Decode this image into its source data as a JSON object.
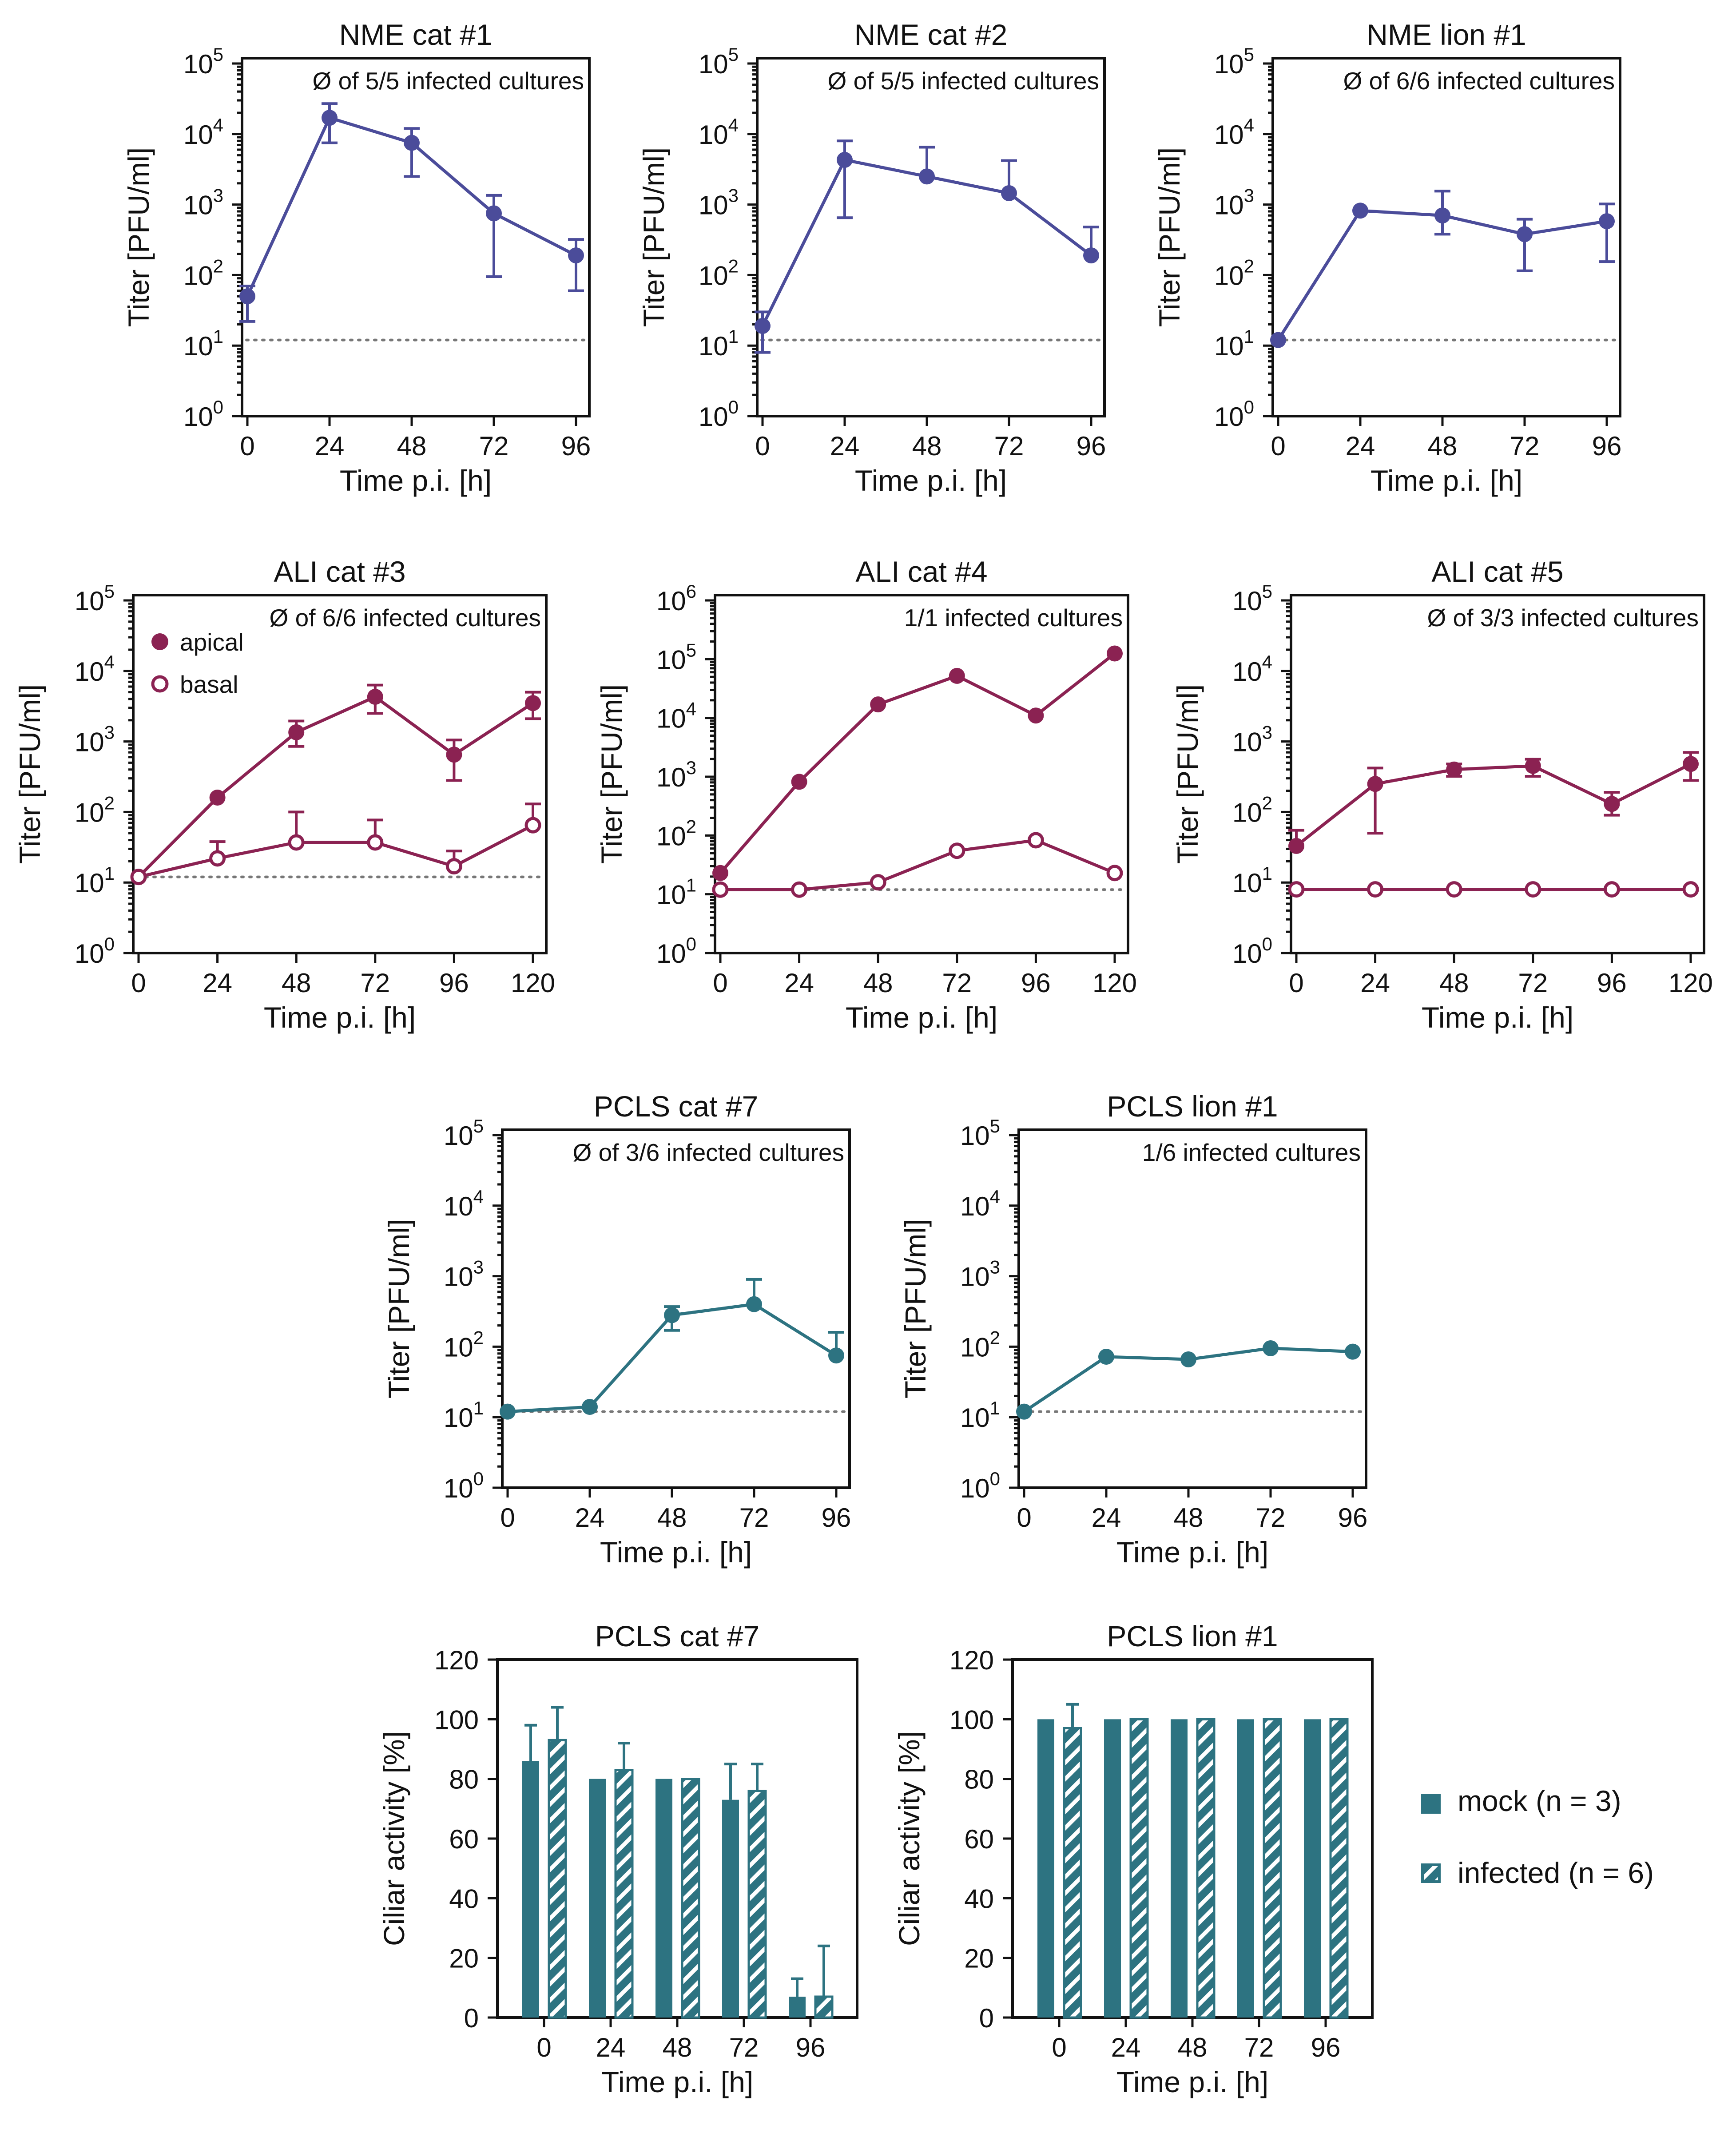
{
  "colors": {
    "nme": "#4b4c9a",
    "ali": "#8b2252",
    "pcls": "#2d7381"
  },
  "legends": {
    "apical": "apical",
    "basal": "basal",
    "mock": "mock (n = 3)",
    "infected": "infected (n = 6)"
  },
  "chart_data": [
    {
      "id": "nme-cat1",
      "type": "line",
      "title": "NME cat #1",
      "annotation": "Ø of 5/5 infected cultures",
      "xlabel": "Time p.i. [h]",
      "ylabel": "Titer [PFU/ml]",
      "xlim": [
        0,
        96
      ],
      "xticks": [
        0,
        24,
        48,
        72,
        96
      ],
      "ylog_exp": [
        0,
        5
      ],
      "yscale": "log",
      "detection_limit": 12,
      "color": "nme",
      "series": [
        {
          "name": "titer",
          "marker": "filled",
          "x": [
            0,
            24,
            48,
            72,
            96
          ],
          "y": [
            50,
            17000,
            7500,
            750,
            190
          ],
          "err_low": [
            22,
            7500,
            2500,
            95,
            60
          ],
          "err_high": [
            70,
            27000,
            12000,
            1350,
            320
          ]
        }
      ]
    },
    {
      "id": "nme-cat2",
      "type": "line",
      "title": "NME cat #2",
      "annotation": "Ø of 5/5 infected cultures",
      "xlabel": "Time p.i. [h]",
      "ylabel": "Titer [PFU/ml]",
      "xlim": [
        0,
        96
      ],
      "xticks": [
        0,
        24,
        48,
        72,
        96
      ],
      "ylog_exp": [
        0,
        5
      ],
      "yscale": "log",
      "detection_limit": 12,
      "color": "nme",
      "series": [
        {
          "name": "titer",
          "marker": "filled",
          "x": [
            0,
            24,
            48,
            72,
            96
          ],
          "y": [
            19,
            4300,
            2500,
            1450,
            190
          ],
          "err_low": [
            8,
            650,
            null,
            null,
            null
          ],
          "err_high": [
            30,
            8000,
            6500,
            4200,
            480
          ]
        }
      ]
    },
    {
      "id": "nme-lion1",
      "type": "line",
      "title": "NME lion #1",
      "annotation": "Ø of 6/6 infected cultures",
      "xlabel": "Time p.i. [h]",
      "ylabel": "Titer [PFU/ml]",
      "xlim": [
        0,
        96
      ],
      "xticks": [
        0,
        24,
        48,
        72,
        96
      ],
      "ylog_exp": [
        0,
        5
      ],
      "yscale": "log",
      "detection_limit": 12,
      "color": "nme",
      "series": [
        {
          "name": "titer",
          "marker": "filled",
          "x": [
            0,
            24,
            48,
            72,
            96
          ],
          "y": [
            12,
            820,
            700,
            380,
            580
          ],
          "err_low": [
            null,
            null,
            380,
            115,
            155
          ],
          "err_high": [
            null,
            null,
            1550,
            620,
            1020
          ]
        }
      ]
    },
    {
      "id": "ali-cat3",
      "type": "line",
      "title": "ALI cat #3",
      "annotation": "Ø of 6/6 infected cultures",
      "xlabel": "Time p.i. [h]",
      "ylabel": "Titer [PFU/ml]",
      "xlim": [
        0,
        120
      ],
      "xticks": [
        0,
        24,
        48,
        72,
        96,
        120
      ],
      "ylog_exp": [
        0,
        5
      ],
      "yscale": "log",
      "detection_limit": 12,
      "color": "ali",
      "legend": [
        "apical",
        "basal"
      ],
      "series": [
        {
          "name": "apical",
          "marker": "filled",
          "x": [
            0,
            24,
            48,
            72,
            96,
            120
          ],
          "y": [
            12,
            160,
            1350,
            4300,
            650,
            3500
          ],
          "err_low": [
            null,
            null,
            850,
            2500,
            280,
            2100
          ],
          "err_high": [
            null,
            null,
            1950,
            6300,
            1050,
            5000
          ]
        },
        {
          "name": "basal",
          "marker": "open",
          "x": [
            0,
            24,
            48,
            72,
            96,
            120
          ],
          "y": [
            12,
            22,
            37,
            37,
            17,
            65
          ],
          "err_low": [
            null,
            null,
            null,
            null,
            null,
            null
          ],
          "err_high": [
            null,
            38,
            100,
            77,
            28,
            130
          ]
        }
      ]
    },
    {
      "id": "ali-cat4",
      "type": "line",
      "title": "ALI cat #4",
      "annotation": "1/1 infected cultures",
      "xlabel": "Time p.i. [h]",
      "ylabel": "Titer [PFU/ml]",
      "xlim": [
        0,
        120
      ],
      "xticks": [
        0,
        24,
        48,
        72,
        96,
        120
      ],
      "ylog_exp": [
        0,
        6
      ],
      "yscale": "log",
      "detection_limit": 12,
      "color": "ali",
      "series": [
        {
          "name": "apical",
          "marker": "filled",
          "x": [
            0,
            24,
            48,
            72,
            96,
            120
          ],
          "y": [
            23,
            820,
            17000,
            52000,
            11000,
            125000
          ]
        },
        {
          "name": "basal",
          "marker": "open",
          "x": [
            0,
            24,
            48,
            72,
            96,
            120
          ],
          "y": [
            12,
            12,
            16,
            55,
            83,
            23
          ]
        }
      ]
    },
    {
      "id": "ali-cat5",
      "type": "line",
      "title": "ALI cat #5",
      "annotation": "Ø of 3/3  infected cultures",
      "xlabel": "Time p.i. [h]",
      "ylabel": "Titer [PFU/ml]",
      "xlim": [
        0,
        120
      ],
      "xticks": [
        0,
        24,
        48,
        72,
        96,
        120
      ],
      "ylog_exp": [
        0,
        5
      ],
      "yscale": "log",
      "color": "ali",
      "series": [
        {
          "name": "apical",
          "marker": "filled",
          "x": [
            0,
            24,
            48,
            72,
            96,
            120
          ],
          "y": [
            33,
            250,
            400,
            450,
            130,
            480
          ],
          "err_low": [
            null,
            50,
            320,
            320,
            90,
            280
          ],
          "err_high": [
            55,
            420,
            480,
            560,
            190,
            700
          ]
        },
        {
          "name": "basal",
          "marker": "open",
          "x": [
            0,
            24,
            48,
            72,
            96,
            120
          ],
          "y": [
            8,
            8,
            8,
            8,
            8,
            8
          ]
        }
      ]
    },
    {
      "id": "pcls-cat7",
      "type": "line",
      "title": "PCLS cat #7",
      "annotation": "Ø of 3/6 infected cultures",
      "xlabel": "Time p.i. [h]",
      "ylabel": "Titer [PFU/ml]",
      "xlim": [
        0,
        96
      ],
      "xticks": [
        0,
        24,
        48,
        72,
        96
      ],
      "ylog_exp": [
        0,
        5
      ],
      "yscale": "log",
      "detection_limit": 12,
      "color": "pcls",
      "series": [
        {
          "name": "titer",
          "marker": "filled",
          "x": [
            0,
            24,
            48,
            72,
            96
          ],
          "y": [
            12,
            14,
            280,
            400,
            75
          ],
          "err_low": [
            null,
            null,
            170,
            null,
            null
          ],
          "err_high": [
            null,
            null,
            370,
            900,
            160
          ]
        }
      ]
    },
    {
      "id": "pcls-lion1",
      "type": "line",
      "title": "PCLS lion #1",
      "annotation": "1/6 infected cultures",
      "xlabel": "Time p.i. [h]",
      "ylabel": "Titer [PFU/ml]",
      "xlim": [
        0,
        96
      ],
      "xticks": [
        0,
        24,
        48,
        72,
        96
      ],
      "ylog_exp": [
        0,
        5
      ],
      "yscale": "log",
      "detection_limit": 12,
      "color": "pcls",
      "series": [
        {
          "name": "titer",
          "marker": "filled",
          "x": [
            0,
            24,
            48,
            72,
            96
          ],
          "y": [
            12,
            72,
            66,
            95,
            85
          ]
        }
      ]
    },
    {
      "id": "cilia-cat7",
      "type": "bar",
      "title": "PCLS cat #7",
      "xlabel": "Time p.i. [h]",
      "ylabel": "Ciliar activity [%]",
      "categories": [
        "0",
        "24",
        "48",
        "72",
        "96"
      ],
      "ylim": [
        0,
        120
      ],
      "yticks": [
        0,
        20,
        40,
        60,
        80,
        100,
        120
      ],
      "color": "pcls",
      "series": [
        {
          "name": "mock (n = 3)",
          "pattern": "solid",
          "values": [
            86,
            80,
            80,
            73,
            7
          ],
          "err_high": [
            98,
            null,
            null,
            85,
            13
          ]
        },
        {
          "name": "infected (n = 6)",
          "pattern": "hatched",
          "values": [
            93,
            83,
            80,
            76,
            7
          ],
          "err_high": [
            104,
            92,
            null,
            85,
            24
          ]
        }
      ]
    },
    {
      "id": "cilia-lion1",
      "type": "bar",
      "title": "PCLS lion #1",
      "xlabel": "Time p.i. [h]",
      "ylabel": "Ciliar activity [%]",
      "categories": [
        "0",
        "24",
        "48",
        "72",
        "96"
      ],
      "ylim": [
        0,
        120
      ],
      "yticks": [
        0,
        20,
        40,
        60,
        80,
        100,
        120
      ],
      "color": "pcls",
      "series": [
        {
          "name": "mock (n = 3)",
          "pattern": "solid",
          "values": [
            100,
            100,
            100,
            100,
            100
          ],
          "err_high": [
            null,
            null,
            null,
            null,
            null
          ]
        },
        {
          "name": "infected (n = 6)",
          "pattern": "hatched",
          "values": [
            97,
            100,
            100,
            100,
            100
          ],
          "err_high": [
            105,
            null,
            null,
            null,
            null
          ]
        }
      ]
    }
  ]
}
